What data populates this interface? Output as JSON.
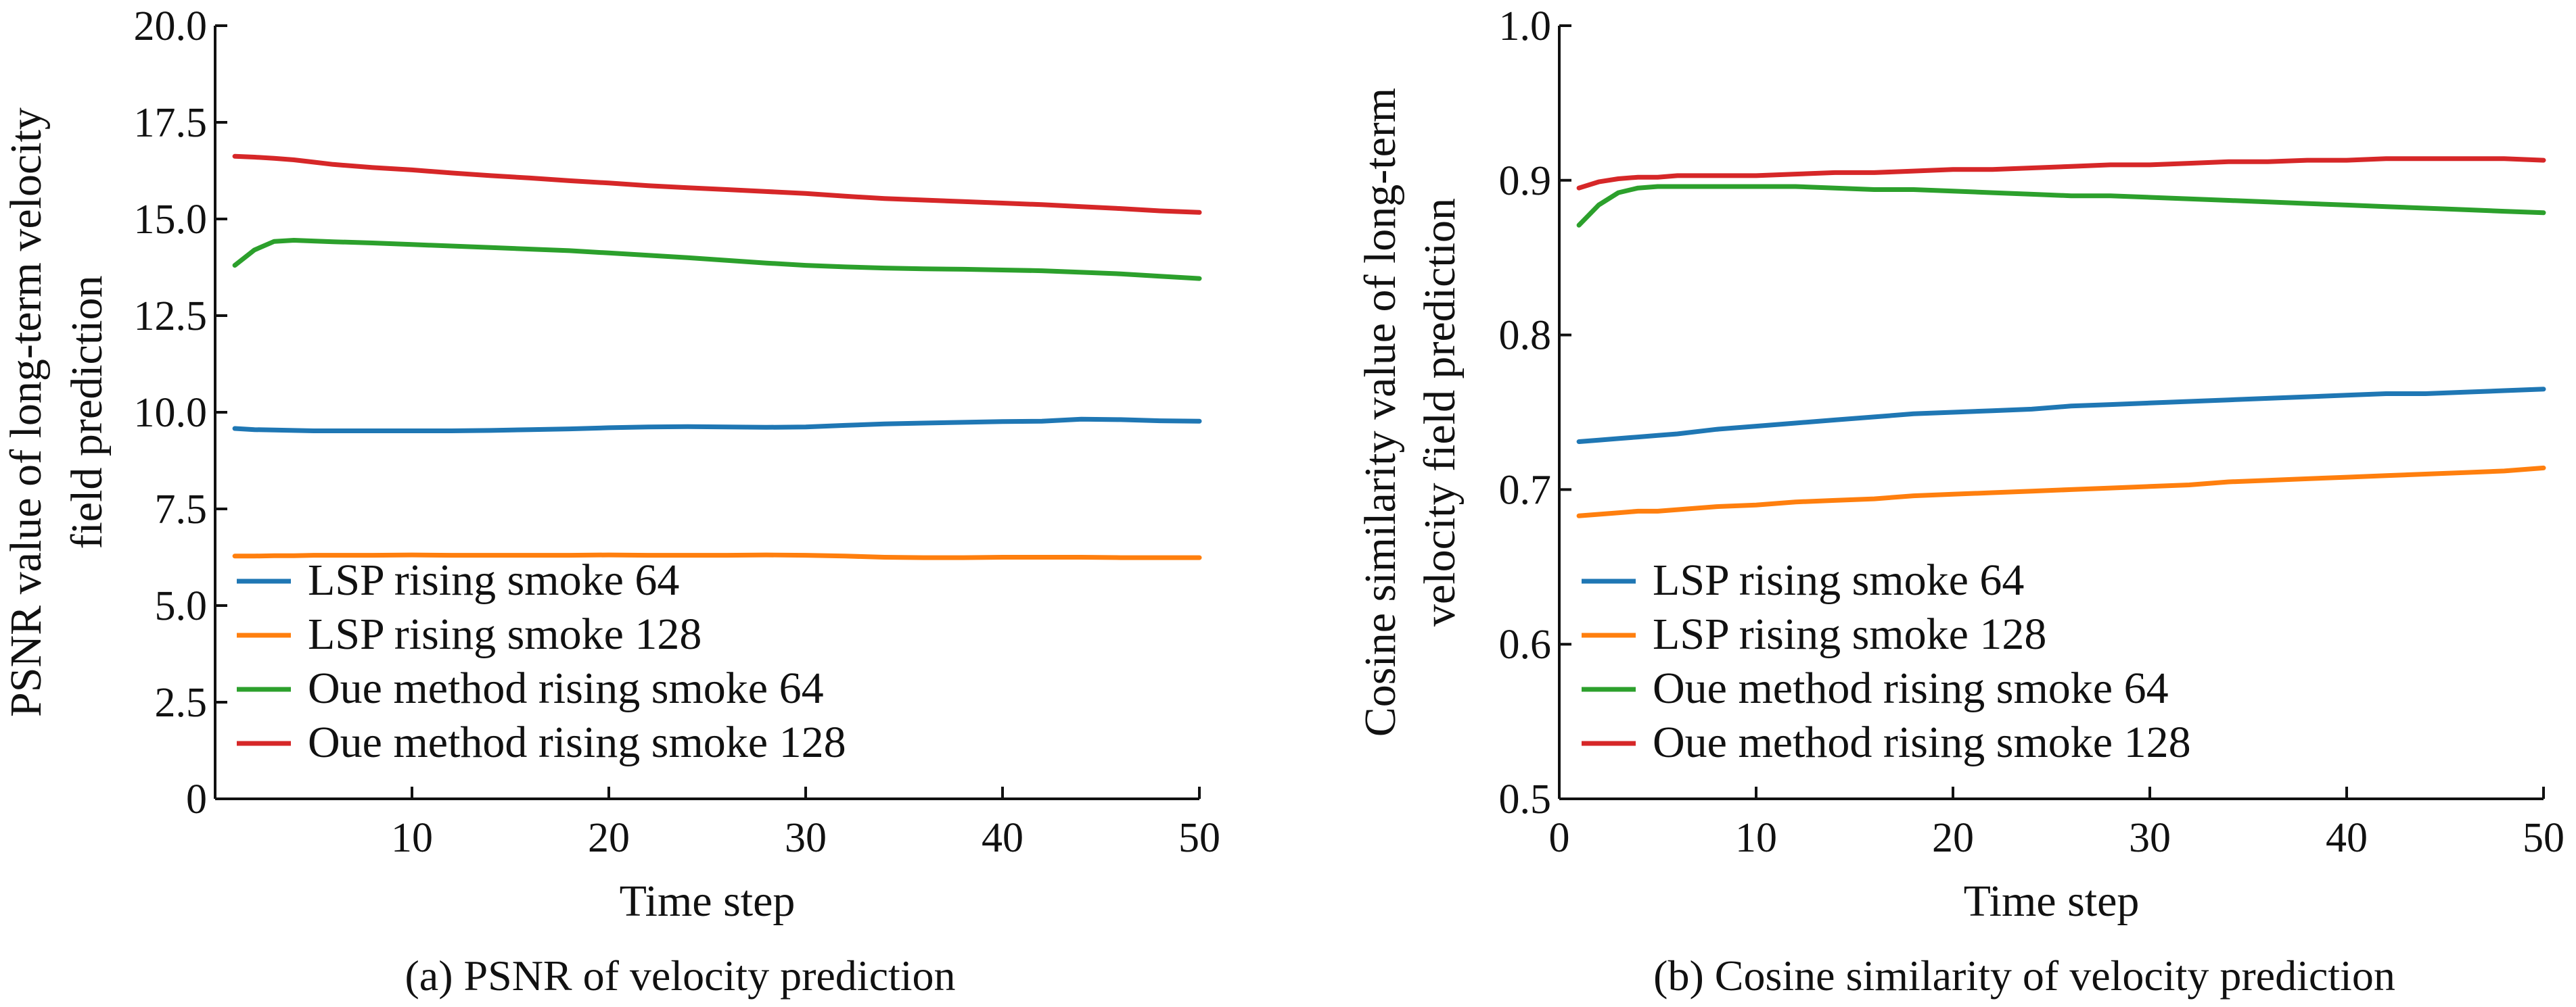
{
  "colors": {
    "lsp64": "#1f77b4",
    "lsp128": "#ff7f0e",
    "our64": "#2ca02c",
    "our128": "#d62728"
  },
  "chart_data": [
    {
      "type": "line",
      "caption": "(a) PSNR of velocity prediction",
      "xlabel": "Time step",
      "ylabel": [
        "PSNR value of long-term velocity",
        "field prediction"
      ],
      "xlim": [
        0,
        50
      ],
      "ylim": [
        0,
        20
      ],
      "xticks": [
        10,
        20,
        30,
        40,
        50
      ],
      "xtick_labels": [
        "10",
        "20",
        "30",
        "40",
        "50"
      ],
      "yticks": [
        0,
        2.5,
        5,
        7.5,
        10,
        12.5,
        15,
        17.5,
        20
      ],
      "ytick_labels": [
        "0",
        "2.5",
        "5.0",
        "7.5",
        "10.0",
        "12.5",
        "15.0",
        "17.5",
        "20.0"
      ],
      "grid": false,
      "legend_position": "bottom-left",
      "x": [
        1,
        2,
        3,
        4,
        5,
        6,
        8,
        10,
        12,
        14,
        16,
        18,
        20,
        22,
        24,
        26,
        28,
        30,
        32,
        34,
        36,
        38,
        40,
        42,
        44,
        46,
        48,
        50
      ],
      "series": [
        {
          "name": "LSP rising smoke 64",
          "color_key": "lsp64",
          "values": [
            9.58,
            9.55,
            9.54,
            9.53,
            9.52,
            9.52,
            9.52,
            9.52,
            9.52,
            9.53,
            9.55,
            9.57,
            9.6,
            9.62,
            9.63,
            9.62,
            9.61,
            9.62,
            9.66,
            9.7,
            9.72,
            9.74,
            9.76,
            9.77,
            9.82,
            9.81,
            9.78,
            9.77
          ]
        },
        {
          "name": "LSP rising smoke 128",
          "color_key": "lsp128",
          "values": [
            6.28,
            6.28,
            6.29,
            6.29,
            6.3,
            6.3,
            6.3,
            6.31,
            6.3,
            6.3,
            6.3,
            6.3,
            6.31,
            6.3,
            6.3,
            6.3,
            6.31,
            6.3,
            6.28,
            6.25,
            6.24,
            6.24,
            6.25,
            6.25,
            6.25,
            6.24,
            6.24,
            6.24
          ]
        },
        {
          "name": "Oue method rising smoke 64",
          "color_key": "our64",
          "values": [
            13.8,
            14.2,
            14.42,
            14.45,
            14.43,
            14.41,
            14.38,
            14.34,
            14.3,
            14.26,
            14.22,
            14.18,
            14.12,
            14.06,
            14.0,
            13.93,
            13.86,
            13.8,
            13.76,
            13.73,
            13.71,
            13.7,
            13.68,
            13.66,
            13.62,
            13.58,
            13.52,
            13.46
          ]
        },
        {
          "name": "Oue method rising smoke 128",
          "color_key": "our128",
          "values": [
            16.62,
            16.6,
            16.57,
            16.53,
            16.47,
            16.41,
            16.33,
            16.27,
            16.19,
            16.12,
            16.06,
            15.99,
            15.93,
            15.86,
            15.81,
            15.76,
            15.71,
            15.66,
            15.59,
            15.53,
            15.49,
            15.45,
            15.41,
            15.37,
            15.32,
            15.27,
            15.21,
            15.17
          ]
        }
      ]
    },
    {
      "type": "line",
      "caption": "(b) Cosine similarity of velocity prediction",
      "xlabel": "Time step",
      "ylabel": [
        "Cosine similarity value of long-term",
        "velocity field prediction"
      ],
      "xlim": [
        0,
        50
      ],
      "ylim": [
        0.5,
        1.0
      ],
      "xticks": [
        0,
        10,
        20,
        30,
        40,
        50
      ],
      "xtick_labels": [
        "0",
        "10",
        "20",
        "30",
        "40",
        "50"
      ],
      "yticks": [
        0.5,
        0.6,
        0.7,
        0.8,
        0.9,
        1.0
      ],
      "ytick_labels": [
        "0.5",
        "0.6",
        "0.7",
        "0.8",
        "0.9",
        "1.0"
      ],
      "grid": false,
      "legend_position": "bottom-left",
      "x": [
        1,
        2,
        3,
        4,
        5,
        6,
        8,
        10,
        12,
        14,
        16,
        18,
        20,
        22,
        24,
        26,
        28,
        30,
        32,
        34,
        36,
        38,
        40,
        42,
        44,
        46,
        48,
        50
      ],
      "series": [
        {
          "name": "LSP rising smoke 64",
          "color_key": "lsp64",
          "values": [
            0.731,
            0.732,
            0.733,
            0.734,
            0.735,
            0.736,
            0.739,
            0.741,
            0.743,
            0.745,
            0.747,
            0.749,
            0.75,
            0.751,
            0.752,
            0.754,
            0.755,
            0.756,
            0.757,
            0.758,
            0.759,
            0.76,
            0.761,
            0.762,
            0.762,
            0.763,
            0.764,
            0.765
          ]
        },
        {
          "name": "LSP rising smoke 128",
          "color_key": "lsp128",
          "values": [
            0.683,
            0.684,
            0.685,
            0.686,
            0.686,
            0.687,
            0.689,
            0.69,
            0.692,
            0.693,
            0.694,
            0.696,
            0.697,
            0.698,
            0.699,
            0.7,
            0.701,
            0.702,
            0.703,
            0.705,
            0.706,
            0.707,
            0.708,
            0.709,
            0.71,
            0.711,
            0.712,
            0.714
          ]
        },
        {
          "name": "Oue method rising smoke 64",
          "color_key": "our64",
          "values": [
            0.871,
            0.884,
            0.892,
            0.895,
            0.896,
            0.896,
            0.896,
            0.896,
            0.896,
            0.895,
            0.894,
            0.894,
            0.893,
            0.892,
            0.891,
            0.89,
            0.89,
            0.889,
            0.888,
            0.887,
            0.886,
            0.885,
            0.884,
            0.883,
            0.882,
            0.881,
            0.88,
            0.879
          ]
        },
        {
          "name": "Oue method rising smoke 128",
          "color_key": "our128",
          "values": [
            0.895,
            0.899,
            0.901,
            0.902,
            0.902,
            0.903,
            0.903,
            0.903,
            0.904,
            0.905,
            0.905,
            0.906,
            0.907,
            0.907,
            0.908,
            0.909,
            0.91,
            0.91,
            0.911,
            0.912,
            0.912,
            0.913,
            0.913,
            0.914,
            0.914,
            0.914,
            0.914,
            0.913
          ]
        }
      ]
    }
  ]
}
